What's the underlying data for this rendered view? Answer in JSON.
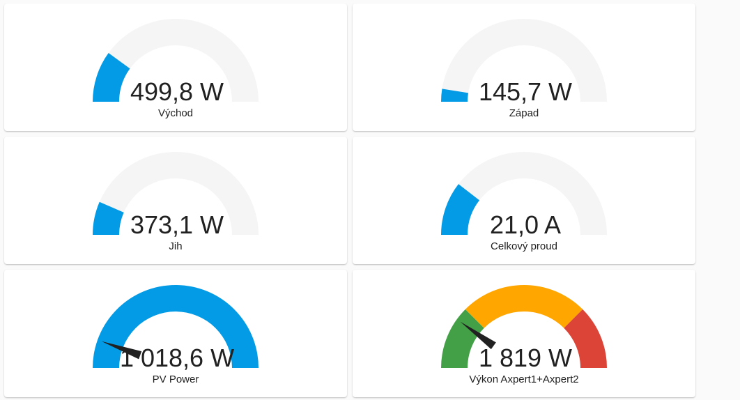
{
  "colors": {
    "track": "#f5f5f5",
    "primary": "#039be5",
    "severity_green": "#43a047",
    "severity_yellow": "#ffa600",
    "severity_red": "#db4437",
    "needle": "#212121"
  },
  "gauges": [
    {
      "value_text": "499,8 W",
      "name": "Východ",
      "fraction": 0.2,
      "mode": "simple"
    },
    {
      "value_text": "145,7 W",
      "name": "Západ",
      "fraction": 0.05,
      "mode": "simple"
    },
    {
      "value_text": "373,1 W",
      "name": "Jih",
      "fraction": 0.13,
      "mode": "simple"
    },
    {
      "value_text": "21,0 A",
      "name": "Celkový proud",
      "fraction": 0.21,
      "mode": "simple"
    },
    {
      "value_text": "1 018,6 W",
      "name": "PV Power",
      "fraction": 0.11,
      "mode": "needle-full"
    },
    {
      "value_text": "1 819 W",
      "name": "Výkon Axpert1+Axpert2",
      "fraction": 0.2,
      "mode": "needle-severity",
      "segments": [
        0.25,
        0.75
      ]
    }
  ]
}
